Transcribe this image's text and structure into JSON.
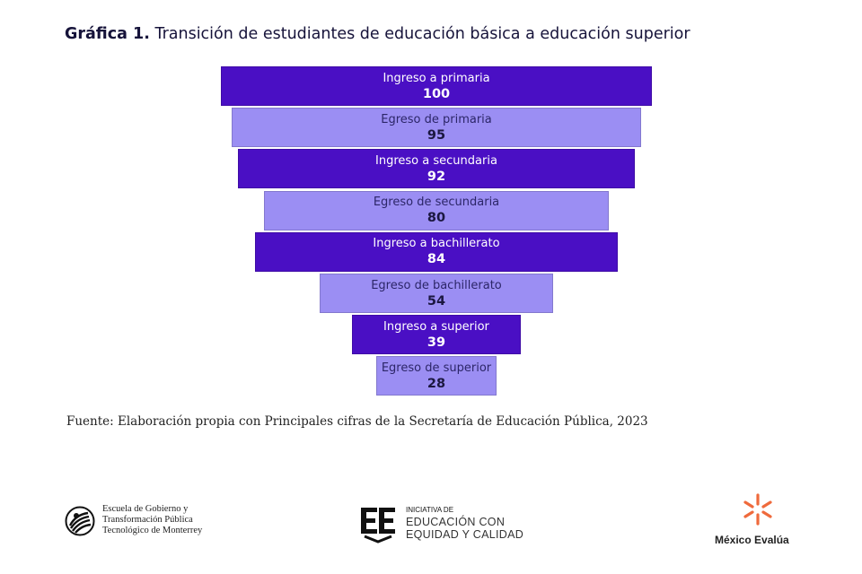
{
  "header": {
    "title_bold": "Gráfica 1.",
    "title_rest": "Transición de estudiantes de educación básica a educación superior"
  },
  "chart_data": {
    "type": "bar",
    "orientation": "funnel",
    "title": "Gráfica 1. Transición de estudiantes de educación básica a educación superior",
    "categories": [
      "Ingreso a primaria",
      "Egreso de primaria",
      "Ingreso a secundaria",
      "Egreso de secundaria",
      "Ingreso a bachillerato",
      "Egreso de bachillerato",
      "Ingreso a superior",
      "Egreso de superior"
    ],
    "values": [
      100,
      95,
      92,
      80,
      84,
      54,
      39,
      28
    ],
    "data_labels": [
      "100",
      "95",
      "92",
      "80",
      "84",
      "54",
      "39",
      "28"
    ],
    "colors": {
      "ingreso": "#4a0fc4",
      "egreso": "#9b8ef3"
    },
    "legend": "none",
    "grid": false
  },
  "footer": {
    "source": "Fuente: Elaboración propia con Principales cifras de la Secretaría de Educación Pública, 2023",
    "logo_tec": {
      "line1": "Escuela de Gobierno y",
      "line2": "Transformación Pública",
      "line3": "Tecnológico de Monterrey"
    },
    "logo_iniciativa": {
      "small": "INICIATIVA DE",
      "line1": "EDUCACIÓN CON",
      "line2": "EQUIDAD Y CALIDAD"
    },
    "logo_mexico_evalua": {
      "name": "México Evalúa"
    }
  }
}
